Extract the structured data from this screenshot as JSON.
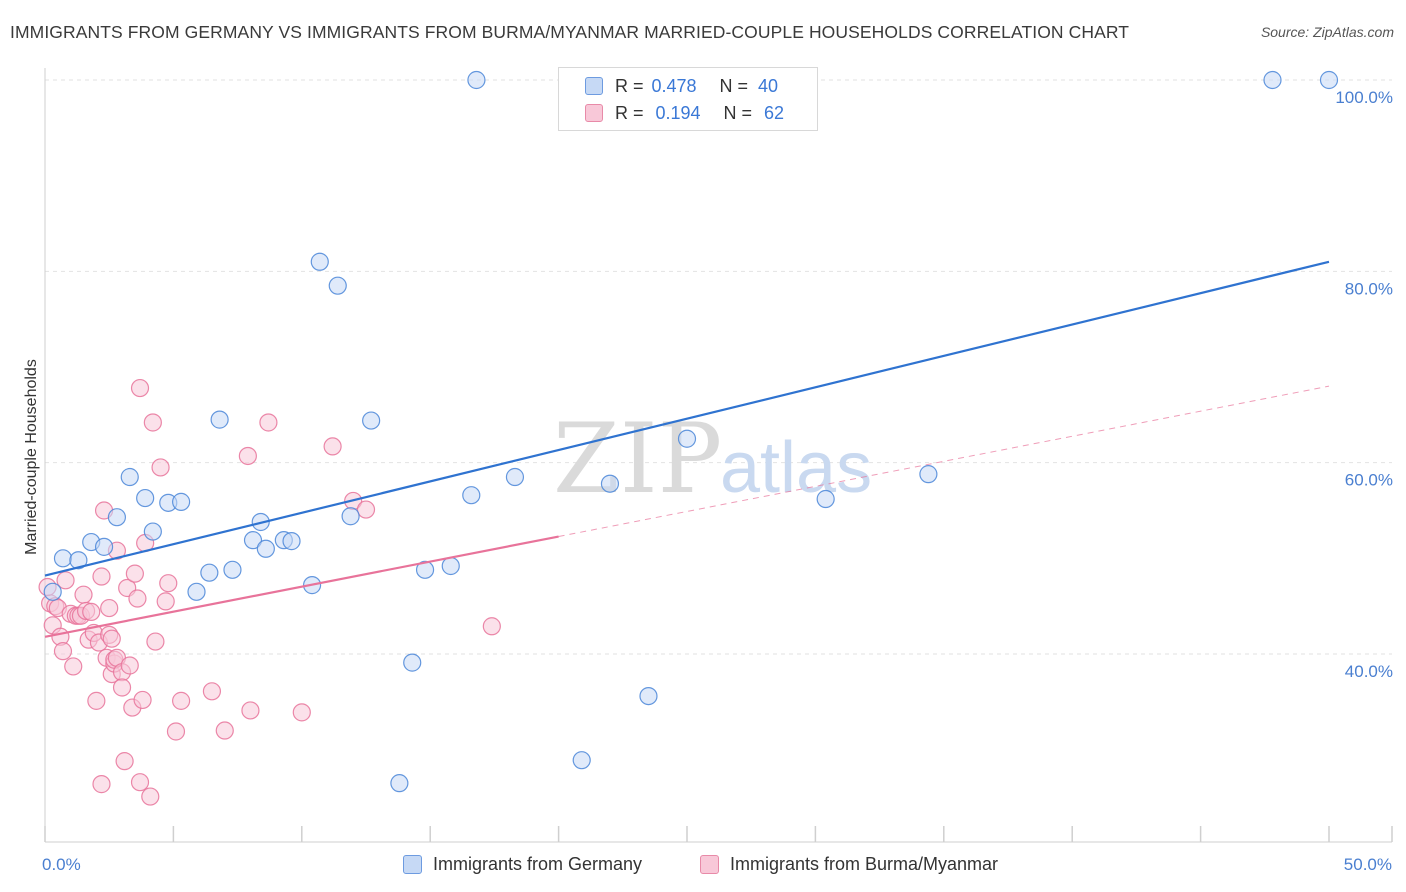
{
  "title": "IMMIGRANTS FROM GERMANY VS IMMIGRANTS FROM BURMA/MYANMAR MARRIED-COUPLE HOUSEHOLDS CORRELATION CHART",
  "source": "Source: ZipAtlas.com",
  "watermark": {
    "zip": "ZIP",
    "atlas": "atlas"
  },
  "colors": {
    "germany": "#4a86d8",
    "germany_fill": "#c6d9f5",
    "burma": "#e8739a",
    "burma_fill": "#f8c8d8",
    "tick_text": "#4a7fd0",
    "grid": "#e2e2e2"
  },
  "legend": {
    "r_label": "R =",
    "n_label": "N =",
    "germany": {
      "r": "0.478",
      "n": "40"
    },
    "burma": {
      "r": "0.194",
      "n": "62"
    }
  },
  "bottom_legend": {
    "germany": "Immigrants from Germany",
    "burma": "Immigrants from Burma/Myanmar"
  },
  "chart_data": {
    "type": "scatter",
    "title": "IMMIGRANTS FROM GERMANY VS IMMIGRANTS FROM BURMA/MYANMAR MARRIED-COUPLE HOUSEHOLDS CORRELATION CHART",
    "xlabel": "",
    "ylabel": "Married-couple Households",
    "xlim": [
      0,
      50
    ],
    "ylim": [
      20,
      102
    ],
    "x_tick_labels": [
      "0.0%",
      "50.0%"
    ],
    "y_ticks": [
      40,
      60,
      80,
      100
    ],
    "y_tick_labels": [
      "40.0%",
      "60.0%",
      "80.0%",
      "100.0%"
    ],
    "series": [
      {
        "name": "Immigrants from Germany",
        "key": "germany",
        "r": 0.478,
        "n": 40,
        "trend": {
          "x": [
            0,
            50
          ],
          "y": [
            48.2,
            81.0
          ],
          "solid_to": 50
        },
        "points": [
          [
            0.3,
            46.5
          ],
          [
            0.7,
            50.0
          ],
          [
            1.3,
            49.8
          ],
          [
            1.8,
            51.7
          ],
          [
            2.3,
            51.2
          ],
          [
            2.8,
            54.3
          ],
          [
            3.3,
            58.5
          ],
          [
            3.9,
            56.3
          ],
          [
            4.2,
            52.8
          ],
          [
            4.8,
            55.8
          ],
          [
            5.3,
            55.9
          ],
          [
            5.9,
            46.5
          ],
          [
            6.4,
            48.5
          ],
          [
            6.8,
            64.5
          ],
          [
            7.3,
            48.8
          ],
          [
            8.1,
            51.9
          ],
          [
            8.4,
            53.8
          ],
          [
            8.6,
            51.0
          ],
          [
            9.3,
            51.9
          ],
          [
            9.6,
            51.8
          ],
          [
            10.4,
            47.2
          ],
          [
            10.7,
            81.0
          ],
          [
            11.4,
            78.5
          ],
          [
            11.9,
            54.4
          ],
          [
            12.7,
            64.4
          ],
          [
            13.8,
            26.5
          ],
          [
            14.3,
            39.1
          ],
          [
            14.8,
            48.8
          ],
          [
            15.8,
            49.2
          ],
          [
            16.6,
            56.6
          ],
          [
            16.8,
            100.0
          ],
          [
            18.3,
            58.5
          ],
          [
            20.9,
            28.9
          ],
          [
            22.0,
            57.8
          ],
          [
            23.5,
            35.6
          ],
          [
            25.0,
            62.5
          ],
          [
            30.4,
            56.2
          ],
          [
            34.4,
            58.8
          ],
          [
            47.8,
            100.0
          ],
          [
            50.0,
            100.0
          ]
        ]
      },
      {
        "name": "Immigrants from Burma/Myanmar",
        "key": "burma",
        "r": 0.194,
        "n": 62,
        "trend": {
          "x": [
            0,
            50
          ],
          "y": [
            41.8,
            68.0
          ],
          "solid_to": 20
        },
        "points": [
          [
            0.2,
            45.3
          ],
          [
            0.3,
            43.0
          ],
          [
            0.4,
            45.0
          ],
          [
            0.5,
            44.8
          ],
          [
            0.6,
            41.8
          ],
          [
            0.7,
            40.3
          ],
          [
            0.8,
            47.7
          ],
          [
            1.0,
            44.2
          ],
          [
            1.1,
            38.7
          ],
          [
            1.2,
            44.0
          ],
          [
            1.3,
            44.0
          ],
          [
            1.4,
            44.0
          ],
          [
            1.5,
            46.2
          ],
          [
            1.6,
            44.5
          ],
          [
            1.7,
            41.5
          ],
          [
            1.8,
            44.4
          ],
          [
            1.9,
            42.2
          ],
          [
            2.0,
            35.1
          ],
          [
            2.1,
            41.2
          ],
          [
            2.2,
            48.1
          ],
          [
            2.2,
            26.4
          ],
          [
            2.3,
            55.0
          ],
          [
            2.4,
            39.6
          ],
          [
            2.5,
            44.8
          ],
          [
            2.5,
            42.0
          ],
          [
            2.6,
            41.6
          ],
          [
            2.6,
            37.9
          ],
          [
            2.7,
            39.0
          ],
          [
            2.7,
            39.4
          ],
          [
            2.8,
            50.8
          ],
          [
            2.8,
            39.6
          ],
          [
            3.0,
            38.1
          ],
          [
            3.0,
            36.5
          ],
          [
            3.1,
            28.8
          ],
          [
            3.2,
            46.9
          ],
          [
            3.3,
            38.8
          ],
          [
            3.4,
            34.4
          ],
          [
            3.5,
            48.4
          ],
          [
            3.6,
            45.8
          ],
          [
            3.7,
            26.6
          ],
          [
            3.7,
            67.8
          ],
          [
            3.8,
            35.2
          ],
          [
            3.9,
            51.6
          ],
          [
            4.1,
            25.1
          ],
          [
            4.2,
            64.2
          ],
          [
            4.3,
            41.3
          ],
          [
            4.5,
            59.5
          ],
          [
            4.7,
            45.5
          ],
          [
            4.8,
            47.4
          ],
          [
            5.1,
            31.9
          ],
          [
            5.3,
            35.1
          ],
          [
            6.5,
            36.1
          ],
          [
            7.0,
            32.0
          ],
          [
            7.9,
            60.7
          ],
          [
            8.0,
            34.1
          ],
          [
            8.7,
            64.2
          ],
          [
            10.0,
            33.9
          ],
          [
            11.2,
            61.7
          ],
          [
            12.0,
            56.0
          ],
          [
            12.5,
            55.1
          ],
          [
            17.4,
            42.9
          ],
          [
            0.1,
            47.0
          ]
        ]
      }
    ]
  }
}
